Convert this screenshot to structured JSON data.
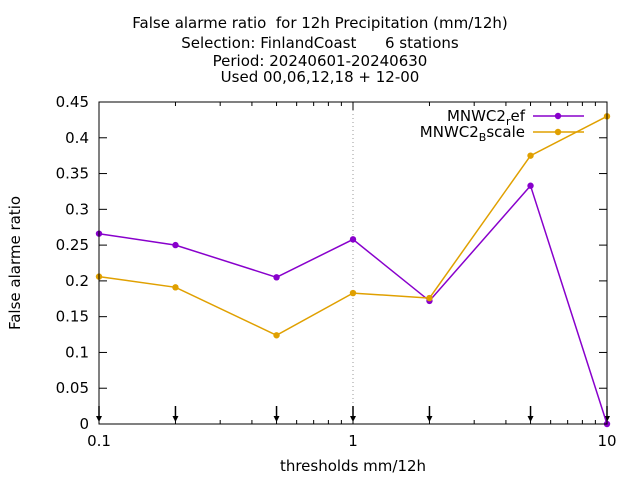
{
  "chart_data": {
    "type": "line",
    "title_lines": [
      "False alarme ratio  for 12h Precipitation (mm/12h)",
      "Selection: FinlandCoast      6 stations",
      "Period: 20240601-20240630",
      "Used 00,06,12,18 + 12-00"
    ],
    "xlabel": "thresholds mm/12h",
    "ylabel": "False alarme ratio",
    "x_scale": "log",
    "xlim": [
      0.1,
      10
    ],
    "ylim": [
      0,
      0.45
    ],
    "x_ticks": [
      0.1,
      1,
      10
    ],
    "x_tick_labels": [
      "0.1",
      "1",
      "10"
    ],
    "y_ticks": [
      0,
      0.05,
      0.1,
      0.15,
      0.2,
      0.25,
      0.3,
      0.35,
      0.4,
      0.45
    ],
    "y_tick_labels": [
      "0",
      "0.05",
      "0.1",
      "0.15",
      "0.2",
      "0.25",
      "0.3",
      "0.35",
      "0.4",
      "0.45"
    ],
    "grid": "dotted at x=1",
    "legend_position": "top-right",
    "threshold_markers": [
      0.1,
      0.2,
      0.5,
      1,
      2,
      5,
      10
    ],
    "series": [
      {
        "name": "MNWC2_ref",
        "legend_main": "MNWC2",
        "legend_sub": "r",
        "legend_rest": "ef",
        "color": "#8800cc",
        "x": [
          0.1,
          0.2,
          0.5,
          1,
          2,
          5,
          10
        ],
        "y": [
          0.266,
          0.25,
          0.205,
          0.258,
          0.172,
          0.333,
          0.0
        ]
      },
      {
        "name": "MNWC2_Bscale",
        "legend_main": "MNWC2",
        "legend_sub": "B",
        "legend_rest": "scale",
        "color": "#e0a000",
        "x": [
          0.1,
          0.2,
          0.5,
          1,
          2,
          5,
          10
        ],
        "y": [
          0.206,
          0.191,
          0.124,
          0.183,
          0.176,
          0.375,
          0.43
        ]
      }
    ]
  }
}
